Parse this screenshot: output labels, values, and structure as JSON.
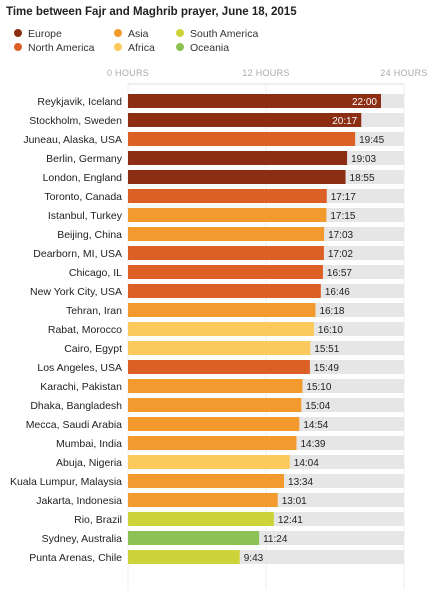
{
  "title": "Time between Fajr and Maghrib prayer, June 18, 2015",
  "legend": [
    {
      "label": "Europe",
      "color": "#8b2e14"
    },
    {
      "label": "Asia",
      "color": "#f39a2e"
    },
    {
      "label": "South America",
      "color": "#cdd43a"
    },
    {
      "label": "North America",
      "color": "#dc5f26"
    },
    {
      "label": "Africa",
      "color": "#fbc95c"
    },
    {
      "label": "Oceania",
      "color": "#8cc153"
    }
  ],
  "chart_data": {
    "type": "bar",
    "orientation": "horizontal",
    "title": "Time between Fajr and Maghrib prayer, June 18, 2015",
    "xlim": [
      0,
      24
    ],
    "x_ticks": [
      "0 HOURS",
      "12 HOURS",
      "24 HOURS"
    ],
    "grid": true,
    "legend_position": "top",
    "categories": [
      "Reykjavik, Iceland",
      "Stockholm, Sweden",
      "Juneau, Alaska, USA",
      "Berlin, Germany",
      "London, England",
      "Toronto, Canada",
      "Istanbul, Turkey",
      "Beijing, China",
      "Dearborn, MI, USA",
      "Chicago, IL",
      "New York City, USA",
      "Tehran, Iran",
      "Rabat, Morocco",
      "Cairo, Egypt",
      "Los Angeles, USA",
      "Karachi, Pakistan",
      "Dhaka, Bangladesh",
      "Mecca, Saudi Arabia",
      "Mumbai, India",
      "Abuja, Nigeria",
      "Kuala Lumpur, Malaysia",
      "Jakarta, Indonesia",
      "Rio, Brazil",
      "Sydney, Australia",
      "Punta Arenas, Chile"
    ],
    "labels": [
      "22:00",
      "20:17",
      "19:45",
      "19:03",
      "18:55",
      "17:17",
      "17:15",
      "17:03",
      "17:02",
      "16:57",
      "16:46",
      "16:18",
      "16:10",
      "15:51",
      "15:49",
      "15:10",
      "15:04",
      "14:54",
      "14:39",
      "14:04",
      "13:34",
      "13:01",
      "12:41",
      "11:24",
      "9:43"
    ],
    "regions": [
      "Europe",
      "Europe",
      "North America",
      "Europe",
      "Europe",
      "North America",
      "Asia",
      "Asia",
      "North America",
      "North America",
      "North America",
      "Asia",
      "Africa",
      "Africa",
      "North America",
      "Asia",
      "Asia",
      "Asia",
      "Asia",
      "Africa",
      "Asia",
      "Asia",
      "South America",
      "Oceania",
      "South America"
    ]
  }
}
